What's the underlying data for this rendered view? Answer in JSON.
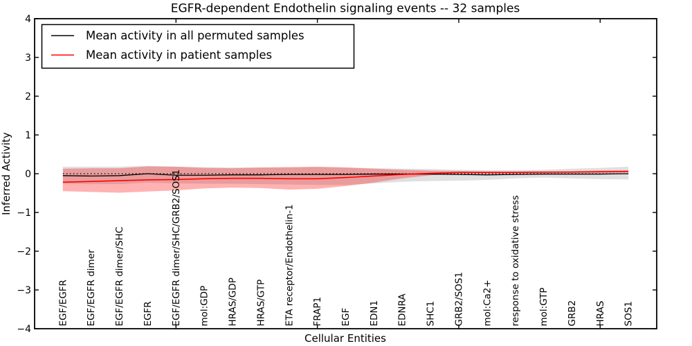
{
  "chart_data": {
    "type": "line",
    "title": "EGFR-dependent Endothelin signaling events -- 32 samples",
    "xlabel": "Cellular Entities",
    "ylabel": "Inferred Activity",
    "ylim": [
      -4,
      4
    ],
    "yticks": [
      -4,
      -3,
      -2,
      -1,
      0,
      1,
      2,
      3,
      4
    ],
    "xlim": [
      0,
      22
    ],
    "x_major_tick_positions": [
      5,
      10,
      15,
      20
    ],
    "grid": false,
    "legend_position": "upper left",
    "zero_line": {
      "value": 0,
      "style": "dotted",
      "color": "#000000"
    },
    "categories": [
      "EGF/EGFR",
      "EGF/EGFR dimer",
      "EGF/EGFR dimer/SHC",
      "EGFR",
      "EGF/EGFR dimer/SHC/GRB2/SOS1",
      "mol:GDP",
      "HRAS/GDP",
      "HRAS/GTP",
      "ETA receptor/Endothelin-1",
      "FRAP1",
      "EGF",
      "EDN1",
      "EDNRA",
      "SHC1",
      "GRB2/SOS1",
      "mol:Ca2+",
      "response to oxidative stress",
      "mol:GTP",
      "GRB2",
      "HRAS",
      "SOS1"
    ],
    "x_positions": [
      1,
      2,
      3,
      4,
      5,
      6,
      7,
      8,
      9,
      10,
      11,
      12,
      13,
      14,
      15,
      16,
      17,
      18,
      19,
      20,
      21
    ],
    "series": [
      {
        "name": "Mean activity in all permuted samples",
        "color": "#000000",
        "line_width": 1.3,
        "values": [
          -0.05,
          -0.06,
          -0.05,
          0.0,
          -0.04,
          -0.04,
          -0.03,
          -0.03,
          -0.02,
          -0.02,
          -0.02,
          -0.01,
          -0.01,
          -0.01,
          -0.02,
          -0.03,
          -0.02,
          -0.01,
          -0.01,
          -0.01,
          0.0
        ],
        "band_upper": [
          0.18,
          0.18,
          0.18,
          0.2,
          0.18,
          0.17,
          0.16,
          0.16,
          0.16,
          0.17,
          0.16,
          0.14,
          0.13,
          0.12,
          0.1,
          0.09,
          0.09,
          0.1,
          0.13,
          0.15,
          0.18
        ],
        "band_lower": [
          -0.26,
          -0.27,
          -0.27,
          -0.23,
          -0.25,
          -0.26,
          -0.26,
          -0.27,
          -0.28,
          -0.29,
          -0.29,
          -0.25,
          -0.21,
          -0.19,
          -0.18,
          -0.16,
          -0.12,
          -0.1,
          -0.12,
          -0.14,
          -0.15
        ],
        "band_color": "#000000",
        "band_opacity": 0.12
      },
      {
        "name": "Mean activity in patient samples",
        "color": "#ff0000",
        "line_width": 1.6,
        "values": [
          -0.22,
          -0.2,
          -0.18,
          -0.16,
          -0.15,
          -0.13,
          -0.12,
          -0.12,
          -0.13,
          -0.13,
          -0.1,
          -0.06,
          -0.02,
          0.01,
          0.03,
          0.03,
          0.03,
          0.04,
          0.04,
          0.05,
          0.06
        ],
        "band_upper": [
          0.13,
          0.14,
          0.14,
          0.19,
          0.18,
          0.15,
          0.14,
          0.16,
          0.17,
          0.18,
          0.16,
          0.13,
          0.1,
          0.08,
          0.07,
          0.06,
          0.06,
          0.06,
          0.07,
          0.08,
          0.09
        ],
        "band_lower": [
          -0.45,
          -0.47,
          -0.49,
          -0.46,
          -0.43,
          -0.38,
          -0.36,
          -0.37,
          -0.41,
          -0.39,
          -0.32,
          -0.23,
          -0.12,
          -0.04,
          0.01,
          0.0,
          0.01,
          0.01,
          0.02,
          0.02,
          0.03
        ],
        "band_color": "#ff0000",
        "band_opacity": 0.3
      }
    ]
  }
}
